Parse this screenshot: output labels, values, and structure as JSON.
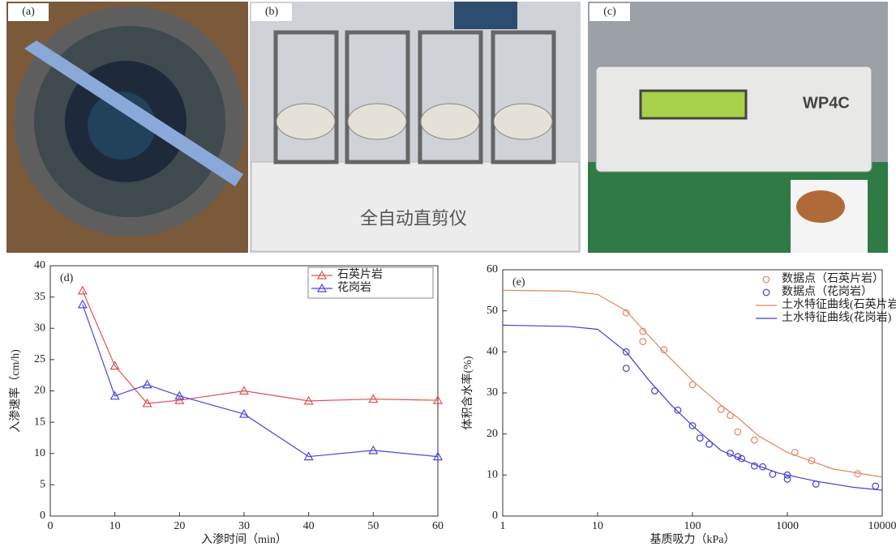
{
  "panels": [
    {
      "label": "(a)"
    },
    {
      "label": "(b)",
      "text": "全自动直剪仪"
    },
    {
      "label": "(c)",
      "text": "WP4C"
    }
  ],
  "chart_data": [
    {
      "type": "line",
      "label": "(d)",
      "xlabel": "入渗时间（min）",
      "ylabel": "入渗速率（cm/h)",
      "xlim": [
        0,
        60
      ],
      "xticks": [
        0,
        10,
        20,
        30,
        40,
        50,
        60
      ],
      "ylim": [
        0,
        40
      ],
      "yticks": [
        0,
        5,
        10,
        15,
        20,
        25,
        30,
        35,
        40
      ],
      "legend": "upper right",
      "marker": "triangle",
      "x": [
        5,
        10,
        15,
        20,
        30,
        40,
        50,
        60
      ],
      "series": [
        {
          "name": "石英片岩",
          "color": "#e05050",
          "values": [
            36,
            24,
            18,
            18.5,
            20,
            18.4,
            18.7,
            18.5
          ]
        },
        {
          "name": "花岗岩",
          "color": "#4848e0",
          "values": [
            33.8,
            19.2,
            21,
            19.2,
            16.3,
            9.5,
            10.5,
            9.5
          ]
        }
      ]
    },
    {
      "type": "scatter",
      "label": "(e)",
      "xlabel": "基质吸力（kPa）",
      "ylabel": "体积含水率(%)",
      "xlim": [
        1,
        10000
      ],
      "xticks": [
        1,
        10,
        100,
        1000,
        10000
      ],
      "log_x": true,
      "ylim": [
        0,
        60
      ],
      "yticks": [
        0,
        10,
        20,
        30,
        40,
        50,
        60
      ],
      "legend": "upper right",
      "series": [
        {
          "name": "数据点（石英片岩）",
          "color": "#e0875f",
          "mode": "markers",
          "x": [
            20,
            30,
            30,
            50,
            100,
            200,
            250,
            300,
            450,
            1200,
            1800,
            5500
          ],
          "values": [
            49.5,
            45,
            42.5,
            40.5,
            32,
            26,
            24.5,
            20.5,
            18.5,
            15.5,
            13.5,
            10.3
          ]
        },
        {
          "name": "数据点（花岗岩）",
          "color": "#4040d0",
          "mode": "markers",
          "x": [
            20,
            20,
            40,
            70,
            100,
            120,
            150,
            250,
            300,
            330,
            450,
            550,
            700,
            1000,
            1000,
            2000,
            8500
          ],
          "values": [
            40,
            36,
            30.5,
            25.8,
            22,
            19,
            17.5,
            15.3,
            14.5,
            14,
            12.2,
            12,
            10.2,
            10,
            9,
            7.8,
            7.3
          ]
        },
        {
          "name": "土水特征曲线(石英片岩)",
          "color": "#e0875f",
          "mode": "line",
          "x": [
            1,
            5,
            10,
            20,
            30,
            50,
            100,
            200,
            300,
            500,
            1000,
            3000,
            10000
          ],
          "values": [
            55,
            54.8,
            54,
            50,
            45.5,
            40,
            33,
            27,
            24,
            19.5,
            15.5,
            11.5,
            9.5
          ]
        },
        {
          "name": "土水特征曲线(花岗岩)",
          "color": "#4040d0",
          "mode": "line",
          "x": [
            1,
            5,
            10,
            20,
            35,
            60,
            100,
            200,
            400,
            800,
            2000,
            5000,
            10000
          ],
          "values": [
            46.5,
            46.2,
            45.5,
            40,
            33,
            27,
            22,
            16,
            13,
            10.5,
            8.5,
            7,
            6.3
          ]
        }
      ]
    }
  ]
}
